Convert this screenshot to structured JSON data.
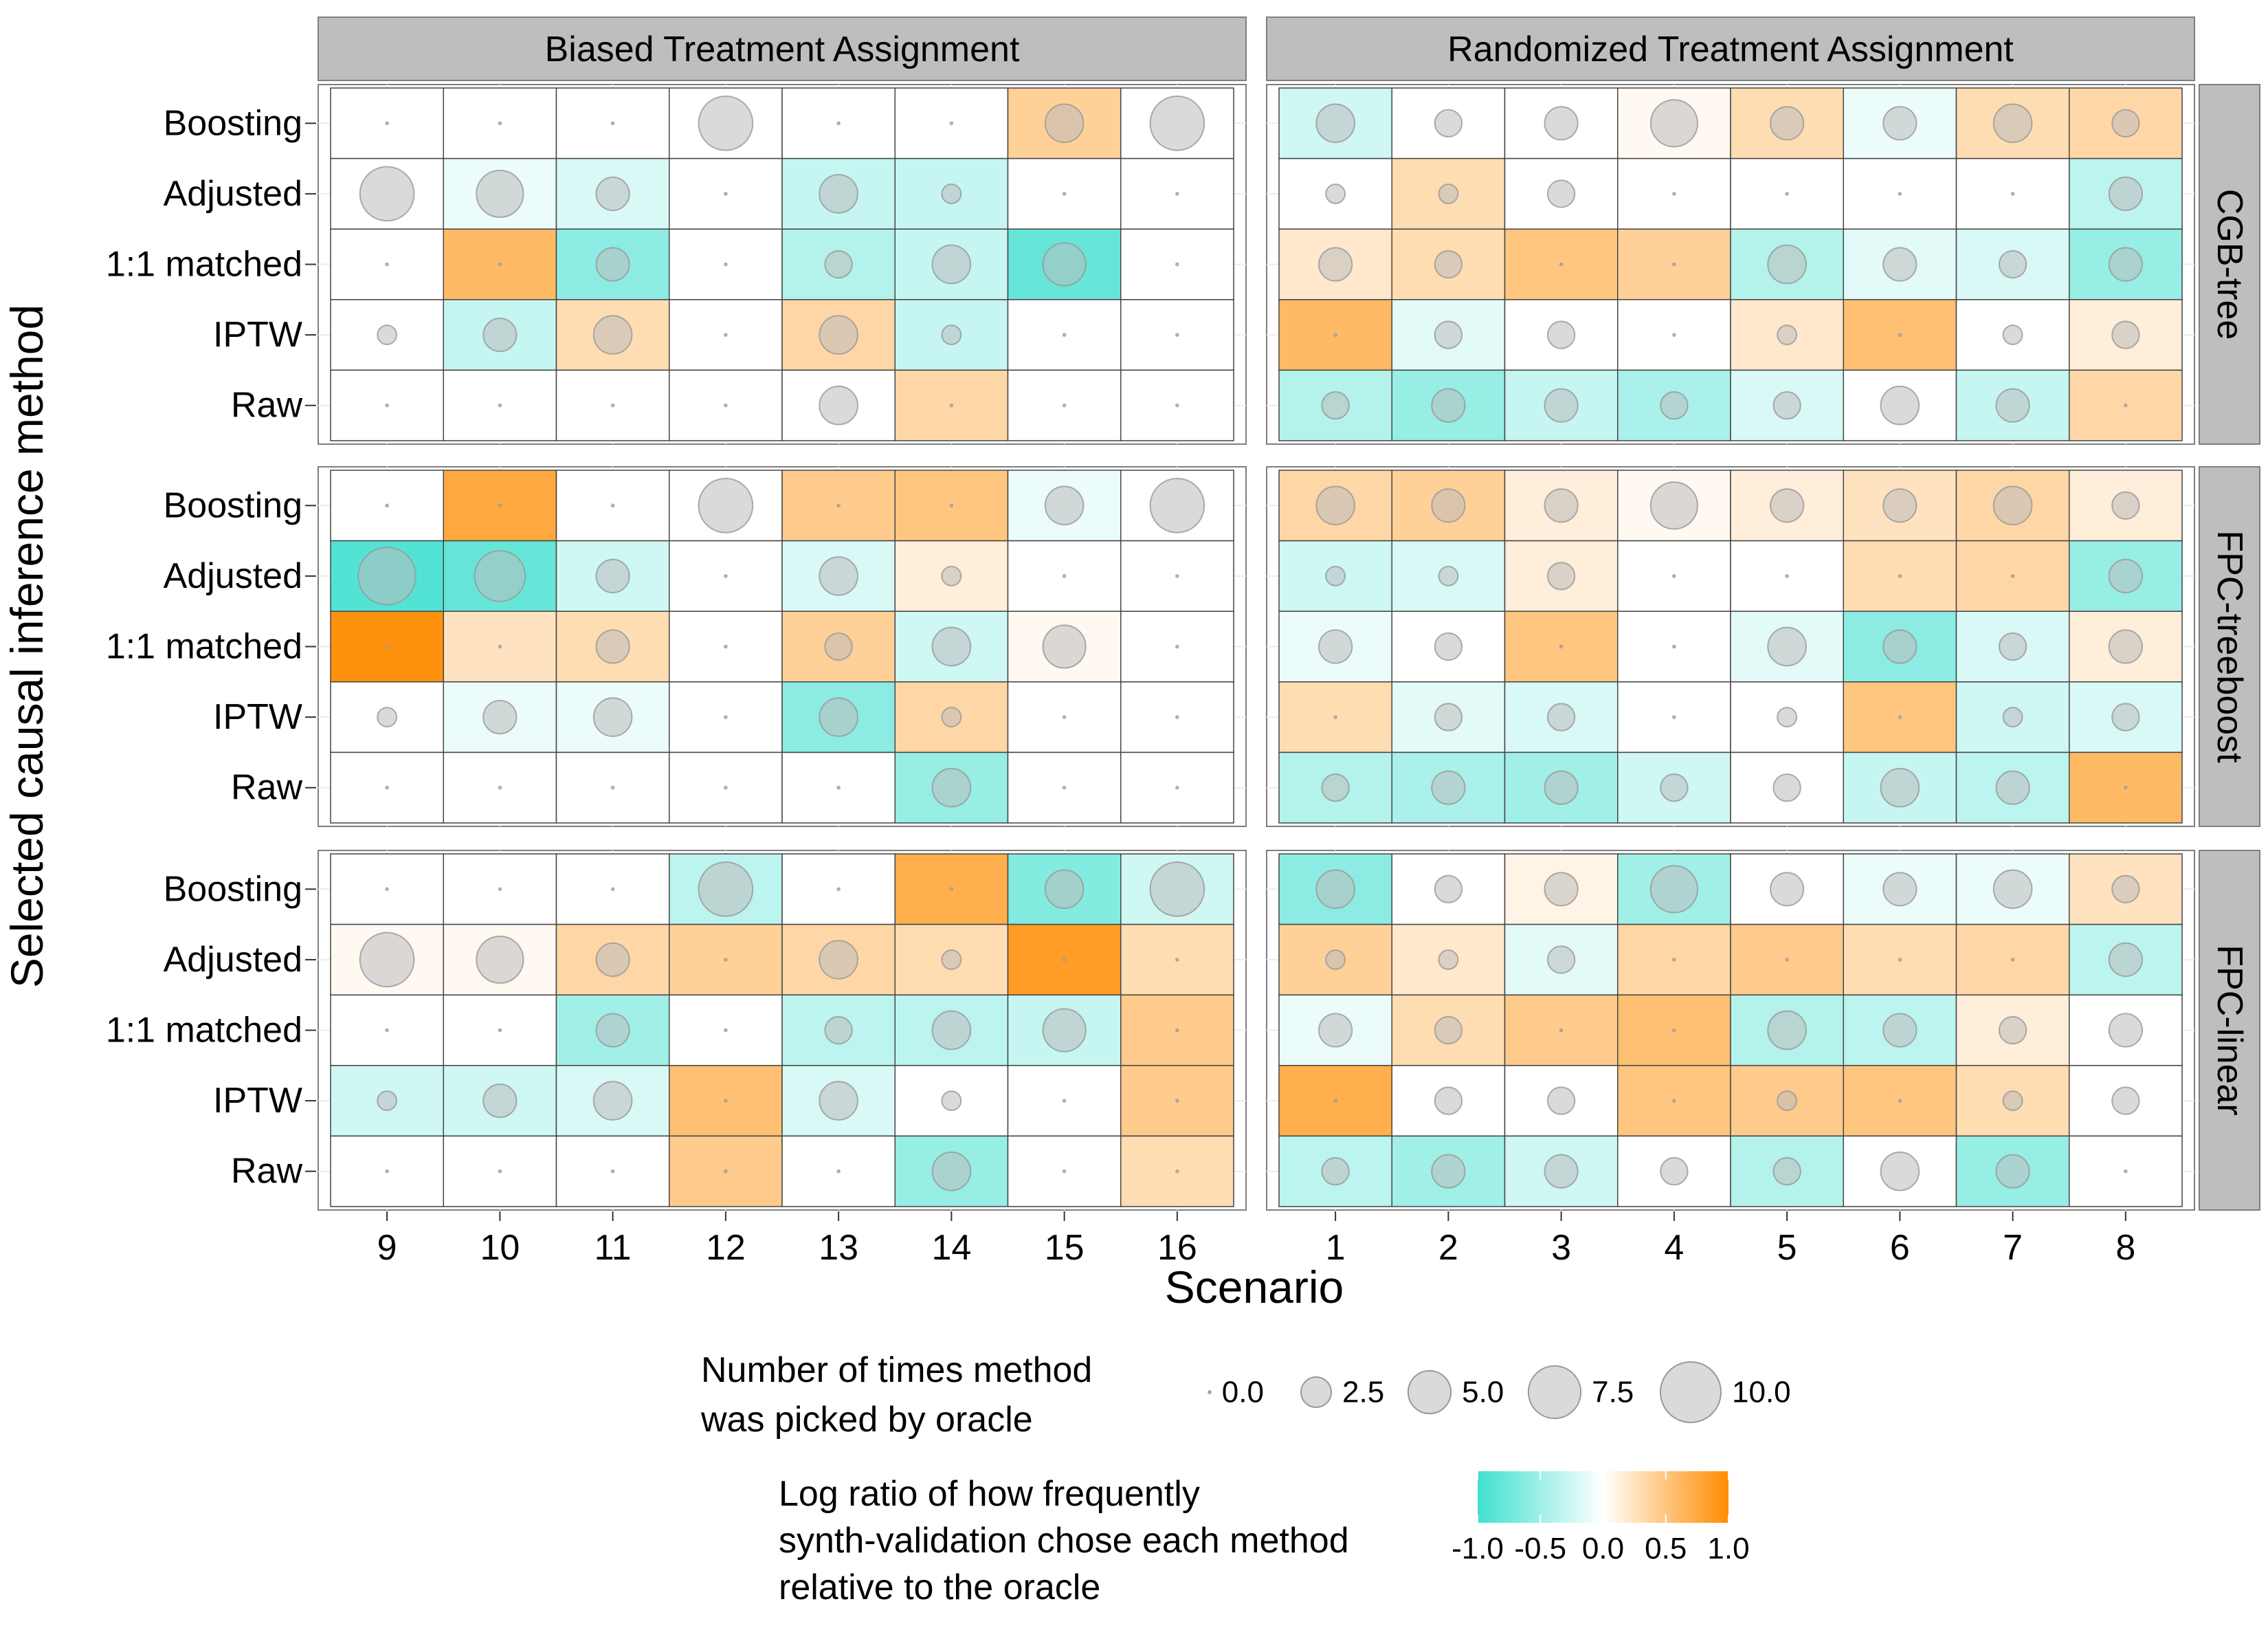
{
  "chart_data": {
    "type": "heatmap",
    "title": "",
    "xlabel": "Scenario",
    "ylabel": "Selected causal inference method",
    "methods": [
      "Boosting",
      "Adjusted",
      "1:1 matched",
      "IPTW",
      "Raw"
    ],
    "column_facets": [
      {
        "label": "Biased Treatment Assignment",
        "scenarios": [
          "9",
          "10",
          "11",
          "12",
          "13",
          "14",
          "15",
          "16"
        ]
      },
      {
        "label": "Randomized Treatment Assignment",
        "scenarios": [
          "1",
          "2",
          "3",
          "4",
          "5",
          "6",
          "7",
          "8"
        ]
      }
    ],
    "row_facets": [
      "CGB-tree",
      "FPC-treeboost",
      "FPC-linear"
    ],
    "fill_range": [
      -1,
      1
    ],
    "size_range": [
      0,
      10
    ],
    "panels": [
      {
        "row": "CGB-tree",
        "col": "Biased Treatment Assignment",
        "log_ratio": [
          [
            0,
            0,
            0,
            0,
            0,
            0,
            0.4,
            0
          ],
          [
            0,
            -0.1,
            -0.2,
            0,
            -0.3,
            -0.3,
            0,
            0
          ],
          [
            0,
            0.6,
            -0.6,
            0,
            -0.4,
            -0.3,
            -0.8,
            0
          ],
          [
            0,
            -0.3,
            0.3,
            0,
            0.35,
            -0.3,
            0,
            0
          ],
          [
            0,
            0,
            0,
            0,
            0,
            0.35,
            0,
            0
          ]
        ],
        "picked": [
          [
            0,
            0,
            0,
            8,
            0,
            0,
            4,
            8
          ],
          [
            8,
            6,
            3,
            0,
            4,
            1,
            0,
            0
          ],
          [
            0,
            0,
            3,
            0,
            2,
            4,
            5,
            0
          ],
          [
            1,
            3,
            4,
            0,
            4,
            1,
            0,
            0
          ],
          [
            0,
            0,
            0,
            0,
            4,
            0,
            0,
            0
          ]
        ]
      },
      {
        "row": "CGB-tree",
        "col": "Randomized Treatment Assignment",
        "log_ratio": [
          [
            -0.25,
            0,
            0,
            0.05,
            0.3,
            -0.1,
            0.3,
            0.35
          ],
          [
            0,
            0.3,
            0,
            0,
            0,
            0,
            0,
            -0.35
          ],
          [
            0.2,
            0.3,
            0.5,
            0.4,
            -0.4,
            -0.15,
            -0.2,
            -0.55
          ],
          [
            0.6,
            -0.15,
            0,
            0,
            0.2,
            0.55,
            0,
            0.15
          ],
          [
            -0.4,
            -0.55,
            -0.3,
            -0.45,
            -0.2,
            0,
            -0.3,
            0.35
          ]
        ],
        "picked": [
          [
            4,
            2,
            3,
            6,
            3,
            3,
            4,
            2
          ],
          [
            1,
            1,
            2,
            0,
            0,
            0,
            0,
            3
          ],
          [
            3,
            2,
            0,
            0,
            4,
            3,
            2,
            3
          ],
          [
            0,
            2,
            2,
            0,
            1,
            0,
            1,
            2
          ],
          [
            2,
            3,
            3,
            2,
            2,
            4,
            3,
            0
          ]
        ]
      },
      {
        "row": "FPC-treeboost",
        "col": "Biased Treatment Assignment",
        "log_ratio": [
          [
            0,
            0.75,
            0,
            0,
            0.45,
            0.5,
            -0.1,
            0
          ],
          [
            -0.9,
            -0.8,
            -0.25,
            0,
            -0.2,
            0.15,
            0,
            0
          ],
          [
            0.95,
            0.25,
            0.3,
            0,
            0.4,
            -0.25,
            0.05,
            0
          ],
          [
            0,
            -0.1,
            -0.1,
            0,
            -0.6,
            0.35,
            0,
            0
          ],
          [
            0,
            0,
            0,
            0,
            0,
            -0.55,
            0,
            0
          ]
        ],
        "picked": [
          [
            0,
            0,
            0,
            8,
            0,
            0,
            4,
            8
          ],
          [
            9,
            7,
            3,
            0,
            4,
            1,
            0,
            0
          ],
          [
            0,
            0,
            3,
            0,
            2,
            4,
            5,
            0
          ],
          [
            1,
            3,
            4,
            0,
            4,
            1,
            0,
            0
          ],
          [
            0,
            0,
            0,
            0,
            0,
            4,
            0,
            0
          ]
        ]
      },
      {
        "row": "FPC-treeboost",
        "col": "Randomized Treatment Assignment",
        "log_ratio": [
          [
            0.35,
            0.4,
            0.15,
            0.05,
            0.15,
            0.25,
            0.35,
            0.15
          ],
          [
            -0.25,
            -0.2,
            0.15,
            0,
            0,
            0.3,
            0.35,
            -0.55
          ],
          [
            -0.1,
            0,
            0.5,
            0,
            -0.15,
            -0.6,
            -0.2,
            0.15
          ],
          [
            0.3,
            -0.15,
            -0.2,
            0,
            0,
            0.5,
            -0.25,
            -0.2
          ],
          [
            -0.4,
            -0.45,
            -0.5,
            -0.25,
            0,
            -0.3,
            -0.35,
            0.6
          ]
        ],
        "picked": [
          [
            4,
            3,
            3,
            6,
            3,
            3,
            4,
            2
          ],
          [
            1,
            1,
            2,
            0,
            0,
            0,
            0,
            3
          ],
          [
            3,
            2,
            0,
            0,
            4,
            3,
            2,
            3
          ],
          [
            0,
            2,
            2,
            0,
            1,
            0,
            1,
            2
          ],
          [
            2,
            3,
            3,
            2,
            2,
            4,
            3,
            0
          ]
        ]
      },
      {
        "row": "FPC-linear",
        "col": "Biased Treatment Assignment",
        "log_ratio": [
          [
            0,
            0,
            0,
            -0.35,
            0,
            0.7,
            -0.65,
            -0.25
          ],
          [
            0.05,
            0.05,
            0.35,
            0.4,
            0.35,
            0.3,
            0.85,
            0.3
          ],
          [
            0,
            0,
            -0.5,
            0,
            -0.35,
            -0.35,
            -0.3,
            0.45
          ],
          [
            -0.25,
            -0.25,
            -0.2,
            0.55,
            -0.2,
            0,
            0,
            0.45
          ],
          [
            0,
            0,
            0,
            0.45,
            0,
            -0.55,
            0,
            0.3
          ]
        ],
        "picked": [
          [
            0,
            0,
            0,
            8,
            0,
            0,
            4,
            8
          ],
          [
            8,
            6,
            3,
            0,
            4,
            1,
            0,
            0
          ],
          [
            0,
            0,
            3,
            0,
            2,
            4,
            5,
            0
          ],
          [
            1,
            3,
            4,
            0,
            4,
            1,
            0,
            0
          ],
          [
            0,
            0,
            0,
            0,
            0,
            4,
            0,
            0
          ]
        ]
      },
      {
        "row": "FPC-linear",
        "col": "Randomized Treatment Assignment",
        "log_ratio": [
          [
            -0.6,
            0,
            0.1,
            -0.5,
            0,
            -0.1,
            -0.1,
            0.25
          ],
          [
            0.4,
            0.2,
            -0.15,
            0.35,
            0.45,
            0.3,
            0.35,
            -0.35
          ],
          [
            -0.1,
            0.3,
            0.45,
            0.55,
            -0.4,
            -0.35,
            0.15,
            0
          ],
          [
            0.7,
            0,
            0,
            0.5,
            0.45,
            0.5,
            0.3,
            0
          ],
          [
            -0.35,
            -0.5,
            -0.25,
            0,
            -0.4,
            0,
            -0.55,
            0
          ]
        ],
        "picked": [
          [
            4,
            2,
            3,
            6,
            3,
            3,
            4,
            2
          ],
          [
            1,
            1,
            2,
            0,
            0,
            0,
            0,
            3
          ],
          [
            3,
            2,
            0,
            0,
            4,
            3,
            2,
            3
          ],
          [
            0,
            2,
            2,
            0,
            1,
            0,
            1,
            2
          ],
          [
            2,
            3,
            3,
            2,
            2,
            4,
            3,
            0
          ]
        ]
      }
    ],
    "legend_size": {
      "title_lines": [
        "Number of times method",
        "was picked by oracle"
      ],
      "breaks": [
        0,
        2.5,
        5,
        7.5,
        10
      ],
      "labels": [
        "0.0",
        "2.5",
        "5.0",
        "7.5",
        "10.0"
      ]
    },
    "legend_fill": {
      "title_lines": [
        "Log ratio of how frequently",
        "synth-validation chose each method",
        "relative to the oracle"
      ],
      "breaks": [
        -1,
        -0.5,
        0,
        0.5,
        1
      ],
      "labels": [
        "-1.0",
        "-0.5",
        "0.0",
        "0.5",
        "1.0"
      ]
    },
    "colors": {
      "negative": "#40E0D0",
      "positive": "#FF8C00",
      "neutral": "#FFFFFF",
      "bubble": "#BBBBBB",
      "strip": "#BEBEBE",
      "panel_border": "#7F7F7F"
    }
  }
}
